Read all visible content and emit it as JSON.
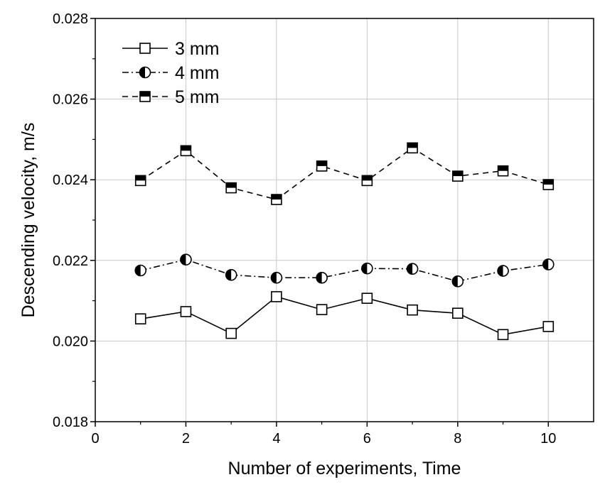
{
  "chart_data": {
    "type": "line",
    "xlabel": "Number of experiments, Time",
    "ylabel": "Descending  velocity, m/s",
    "xlim": [
      0,
      11
    ],
    "ylim": [
      0.018,
      0.028
    ],
    "xticks": [
      0,
      2,
      4,
      6,
      8,
      10
    ],
    "yticks": [
      0.018,
      0.02,
      0.022,
      0.024,
      0.026,
      0.028
    ],
    "xtick_labels": [
      "0",
      "2",
      "4",
      "6",
      "8",
      "10"
    ],
    "ytick_labels": [
      "0.018",
      "0.020",
      "0.022",
      "0.024",
      "0.026",
      "0.028"
    ],
    "grid": true,
    "legend_position": "top-left",
    "x": [
      1,
      2,
      3,
      4,
      5,
      6,
      7,
      8,
      9,
      10
    ],
    "series": [
      {
        "name": "3 mm",
        "line_style": "solid",
        "marker": "square-open",
        "values": [
          0.02055,
          0.02073,
          0.02019,
          0.0211,
          0.02078,
          0.02106,
          0.02077,
          0.02069,
          0.02016,
          0.02036
        ]
      },
      {
        "name": "4 mm",
        "line_style": "dash-dot",
        "marker": "circle-half-left",
        "values": [
          0.02175,
          0.02202,
          0.02164,
          0.02157,
          0.02157,
          0.0218,
          0.02179,
          0.02148,
          0.02174,
          0.0219
        ]
      },
      {
        "name": "5 mm",
        "line_style": "dashed",
        "marker": "square-half-top",
        "values": [
          0.02398,
          0.02472,
          0.0238,
          0.02351,
          0.02434,
          0.02398,
          0.02479,
          0.02409,
          0.02422,
          0.02388
        ]
      }
    ]
  }
}
